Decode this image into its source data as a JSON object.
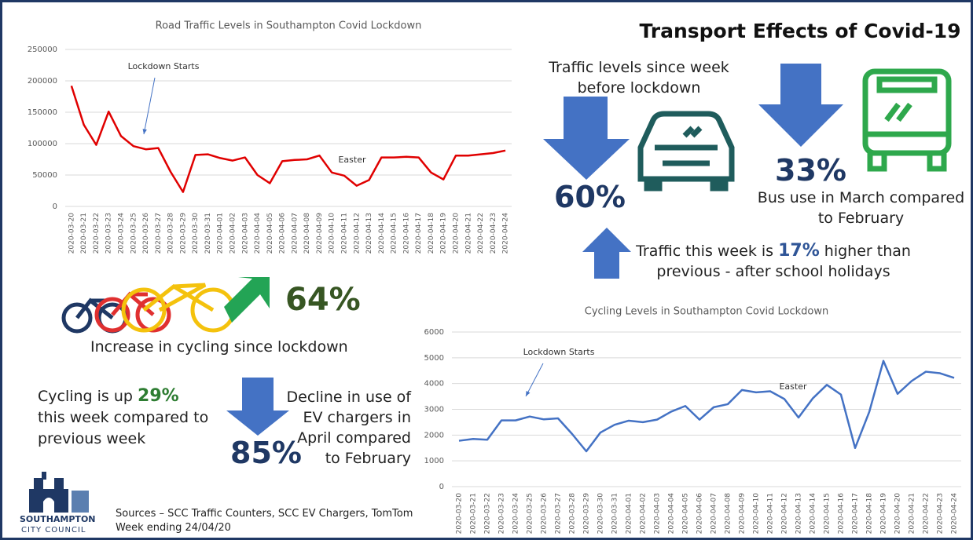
{
  "title": "Transport Effects of Covid-19",
  "chart_data": [
    {
      "type": "line",
      "title": "Road Traffic Levels in Southampton Covid Lockdown",
      "categories": [
        "2020-03-20",
        "2020-03-21",
        "2020-03-22",
        "2020-03-23",
        "2020-03-24",
        "2020-03-25",
        "2020-03-26",
        "2020-03-27",
        "2020-03-28",
        "2020-03-29",
        "2020-03-30",
        "2020-03-31",
        "2020-04-01",
        "2020-04-02",
        "2020-04-03",
        "2020-04-04",
        "2020-04-05",
        "2020-04-06",
        "2020-04-07",
        "2020-04-08",
        "2020-04-09",
        "2020-04-10",
        "2020-04-11",
        "2020-04-12",
        "2020-04-13",
        "2020-04-14",
        "2020-04-15",
        "2020-04-16",
        "2020-04-17",
        "2020-04-18",
        "2020-04-19",
        "2020-04-20",
        "2020-04-21",
        "2020-04-22",
        "2020-04-23",
        "2020-04-24"
      ],
      "values": [
        192000,
        130000,
        98000,
        151000,
        112000,
        96000,
        91000,
        93000,
        55000,
        23000,
        82000,
        83000,
        77000,
        73000,
        78000,
        50000,
        37000,
        72000,
        74000,
        75000,
        81000,
        54000,
        49000,
        33000,
        42000,
        78000,
        78000,
        79000,
        78000,
        54000,
        43000,
        81000,
        81000,
        83000,
        85000,
        89000
      ],
      "color": "#e00000",
      "ylim": [
        0,
        250000
      ],
      "yticks": [
        0,
        50000,
        100000,
        150000,
        200000,
        250000
      ],
      "grid": true,
      "annotations": [
        "Lockdown Starts",
        "Easter"
      ]
    },
    {
      "type": "line",
      "title": "Cycling Levels in Southampton Covid Lockdown",
      "categories": [
        "2020-03-20",
        "2020-03-21",
        "2020-03-22",
        "2020-03-23",
        "2020-03-24",
        "2020-03-25",
        "2020-03-26",
        "2020-03-27",
        "2020-03-28",
        "2020-03-29",
        "2020-03-30",
        "2020-03-31",
        "2020-04-01",
        "2020-04-02",
        "2020-04-03",
        "2020-04-04",
        "2020-04-05",
        "2020-04-06",
        "2020-04-07",
        "2020-04-08",
        "2020-04-09",
        "2020-04-10",
        "2020-04-11",
        "2020-04-12",
        "2020-04-13",
        "2020-04-14",
        "2020-04-15",
        "2020-04-16",
        "2020-04-17",
        "2020-04-18",
        "2020-04-19",
        "2020-04-20",
        "2020-04-21",
        "2020-04-22",
        "2020-04-23",
        "2020-04-24"
      ],
      "values": [
        1780,
        1850,
        1820,
        2570,
        2570,
        2720,
        2610,
        2650,
        2040,
        1370,
        2100,
        2400,
        2560,
        2500,
        2600,
        2910,
        3130,
        2600,
        3080,
        3200,
        3750,
        3660,
        3700,
        3400,
        2680,
        3420,
        3950,
        3570,
        1500,
        2900,
        4880,
        3600,
        4100,
        4460,
        4400,
        4220
      ],
      "color": "#4472c4",
      "ylim": [
        0,
        6000
      ],
      "yticks": [
        0,
        1000,
        2000,
        3000,
        4000,
        5000,
        6000
      ],
      "grid": true,
      "annotations": [
        "Lockdown Starts",
        "Easter"
      ]
    }
  ],
  "traffic": {
    "text": "Traffic levels since week before lockdown",
    "value": "60%"
  },
  "bus": {
    "value": "33%",
    "text": "Bus use in March compared to February"
  },
  "weekly_traffic": {
    "prefix": "Traffic this week is ",
    "value": "17%",
    "suffix": " higher than previous - after school holidays"
  },
  "cycling": {
    "value": "64%",
    "text": "Increase in cycling since lockdown"
  },
  "weekly_cycling": {
    "prefix": "Cycling is up ",
    "value": "29%",
    "suffix": " this week compared to previous week"
  },
  "ev": {
    "value": "85%",
    "text": "Decline in use of EV chargers in April compared to February"
  },
  "footer": {
    "org": "SOUTHAMPTON",
    "org_sub": "CITY COUNCIL",
    "sources": "Sources – SCC Traffic Counters, SCC EV Chargers, TomTom",
    "week": "Week ending 24/04/20"
  }
}
